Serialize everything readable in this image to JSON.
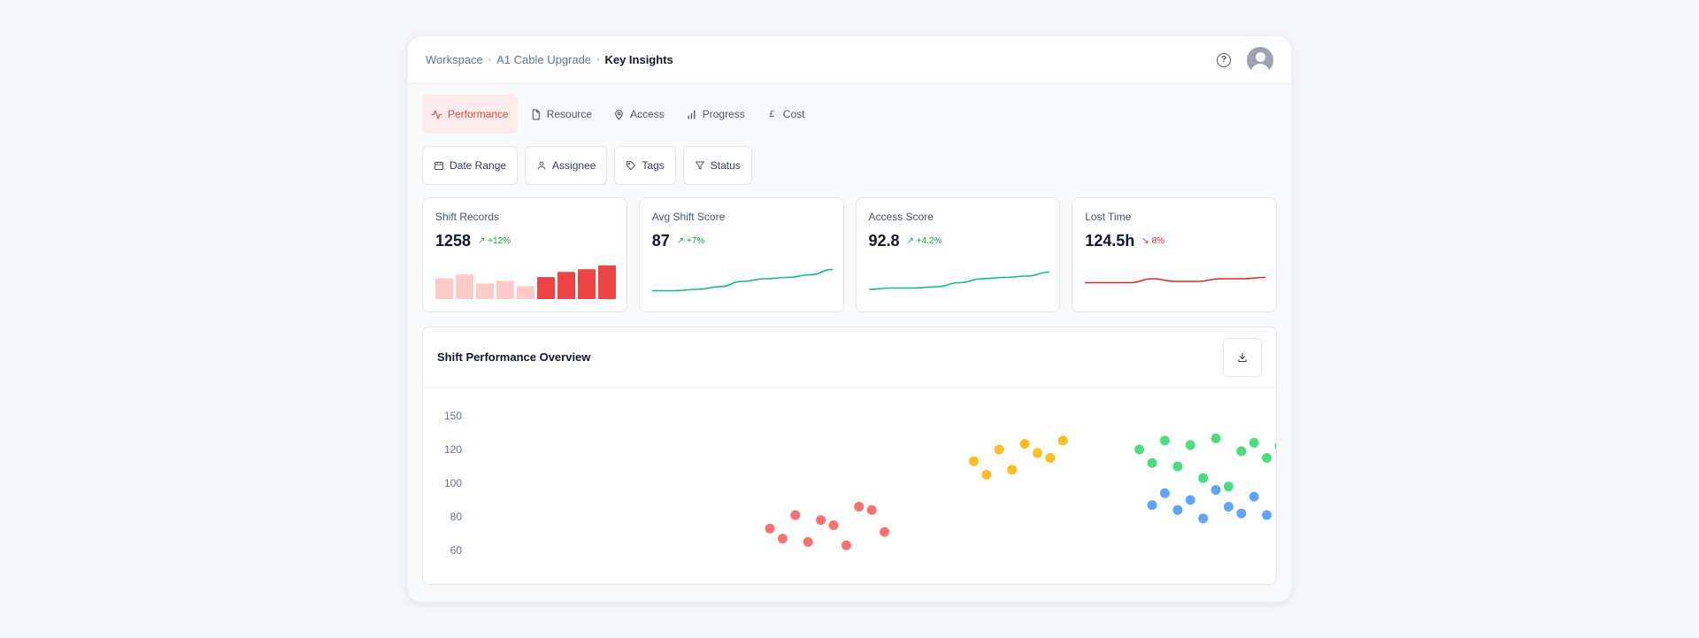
{
  "breadcrumb": {
    "items": [
      "Workspace",
      "A1 Cable Upgrade"
    ],
    "current": "Key Insights"
  },
  "header": {
    "help_icon": "help-circle-icon",
    "avatar_icon": "user-avatar-icon"
  },
  "tabs": [
    {
      "label": "Performance",
      "icon": "activity-icon",
      "active": true
    },
    {
      "label": "Resource",
      "icon": "file-icon",
      "active": false
    },
    {
      "label": "Access",
      "icon": "map-pin-icon",
      "active": false
    },
    {
      "label": "Progress",
      "icon": "bar-chart-icon",
      "active": false
    },
    {
      "label": "Cost",
      "icon": "pound-icon",
      "active": false
    }
  ],
  "filters": [
    {
      "label": "Date Range",
      "icon": "calendar-icon"
    },
    {
      "label": "Assignee",
      "icon": "user-icon"
    },
    {
      "label": "Tags",
      "icon": "tag-icon"
    },
    {
      "label": "Status",
      "icon": "filter-icon"
    }
  ],
  "kpis": [
    {
      "label": "Shift Records",
      "value": "1258",
      "delta": "+12%",
      "trend": "up",
      "spark": {
        "type": "bar",
        "values": [
          16,
          19,
          12,
          14,
          10,
          17,
          21,
          23,
          26
        ],
        "highlight_from": 5
      }
    },
    {
      "label": "Avg Shift Score",
      "value": "87",
      "delta": "+7%",
      "trend": "up",
      "spark": {
        "type": "line",
        "values": [
          5,
          5,
          6,
          8,
          12,
          14,
          15,
          17,
          21
        ]
      }
    },
    {
      "label": "Access Score",
      "value": "92.8",
      "delta": "+4.2%",
      "trend": "up",
      "spark": {
        "type": "line",
        "values": [
          6,
          7,
          7,
          8,
          11,
          14,
          15,
          16,
          19
        ]
      }
    },
    {
      "label": "Lost Time",
      "value": "124.5h",
      "delta": "8%",
      "trend": "down",
      "spark": {
        "type": "line",
        "values": [
          11,
          11,
          11,
          14,
          12,
          12,
          14,
          14,
          15
        ]
      }
    }
  ],
  "colors": {
    "accent": "#e0463e",
    "up": "#16a34a",
    "down": "#dc2626",
    "bar_light": "#fecaca",
    "bar_dark": "#ef4444",
    "line_green": "#10b981",
    "line_red": "#dc2626"
  },
  "panel": {
    "title": "Shift Performance Overview",
    "download_icon": "download-icon"
  },
  "chart_data": {
    "type": "scatter",
    "title": "",
    "yticks": [
      60,
      80,
      100,
      120,
      150
    ],
    "series": [
      {
        "color": "#f87171",
        "points": [
          [
            5,
            73
          ],
          [
            6,
            67
          ],
          [
            7,
            81
          ],
          [
            8,
            65
          ],
          [
            9,
            78
          ],
          [
            10,
            75
          ],
          [
            11,
            63
          ],
          [
            12,
            86
          ],
          [
            13,
            84
          ],
          [
            14,
            71
          ]
        ]
      },
      {
        "color": "#fbbf24",
        "points": [
          [
            21,
            113
          ],
          [
            22,
            105
          ],
          [
            23,
            120
          ],
          [
            24,
            108
          ],
          [
            25,
            125
          ],
          [
            26,
            118
          ],
          [
            27,
            115
          ],
          [
            28,
            128
          ]
        ]
      },
      {
        "color": "#4ade80",
        "points": [
          [
            34,
            120
          ],
          [
            35,
            112
          ],
          [
            36,
            128
          ],
          [
            37,
            110
          ],
          [
            38,
            124
          ],
          [
            39,
            103
          ],
          [
            40,
            130
          ],
          [
            41,
            98
          ],
          [
            42,
            119
          ],
          [
            43,
            126
          ],
          [
            44,
            115
          ],
          [
            45,
            123
          ],
          [
            46,
            108
          ]
        ]
      },
      {
        "color": "#60a5fa",
        "points": [
          [
            35,
            87
          ],
          [
            36,
            94
          ],
          [
            37,
            84
          ],
          [
            38,
            90
          ],
          [
            39,
            79
          ],
          [
            40,
            96
          ],
          [
            41,
            86
          ],
          [
            42,
            82
          ],
          [
            43,
            92
          ],
          [
            44,
            81
          ]
        ]
      }
    ]
  }
}
